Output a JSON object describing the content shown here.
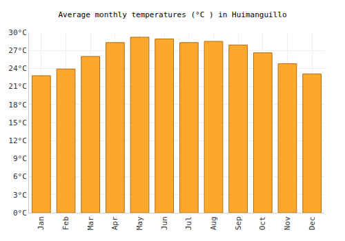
{
  "chart_data": {
    "type": "bar",
    "title": "Average monthly temperatures (°C ) in Huimanguillo",
    "categories": [
      "Jan",
      "Feb",
      "Mar",
      "Apr",
      "May",
      "Jun",
      "Jul",
      "Aug",
      "Sep",
      "Oct",
      "Nov",
      "Dec"
    ],
    "values": [
      22.8,
      23.9,
      26.0,
      28.3,
      29.2,
      28.9,
      28.3,
      28.5,
      27.9,
      26.6,
      24.8,
      23.1
    ],
    "color": "#fca82f",
    "ylim": [
      0,
      30
    ],
    "yticks": [
      {
        "value": 0,
        "label": "0°C"
      },
      {
        "value": 3,
        "label": "3°C"
      },
      {
        "value": 6,
        "label": "6°C"
      },
      {
        "value": 9,
        "label": "9°C"
      },
      {
        "value": 12,
        "label": "12°C"
      },
      {
        "value": 15,
        "label": "15°C"
      },
      {
        "value": 18,
        "label": "18°C"
      },
      {
        "value": 21,
        "label": "21°C"
      },
      {
        "value": 24,
        "label": "24°C"
      },
      {
        "value": 27,
        "label": "27°C"
      },
      {
        "value": 30,
        "label": "30°C"
      }
    ],
    "grid": true
  }
}
